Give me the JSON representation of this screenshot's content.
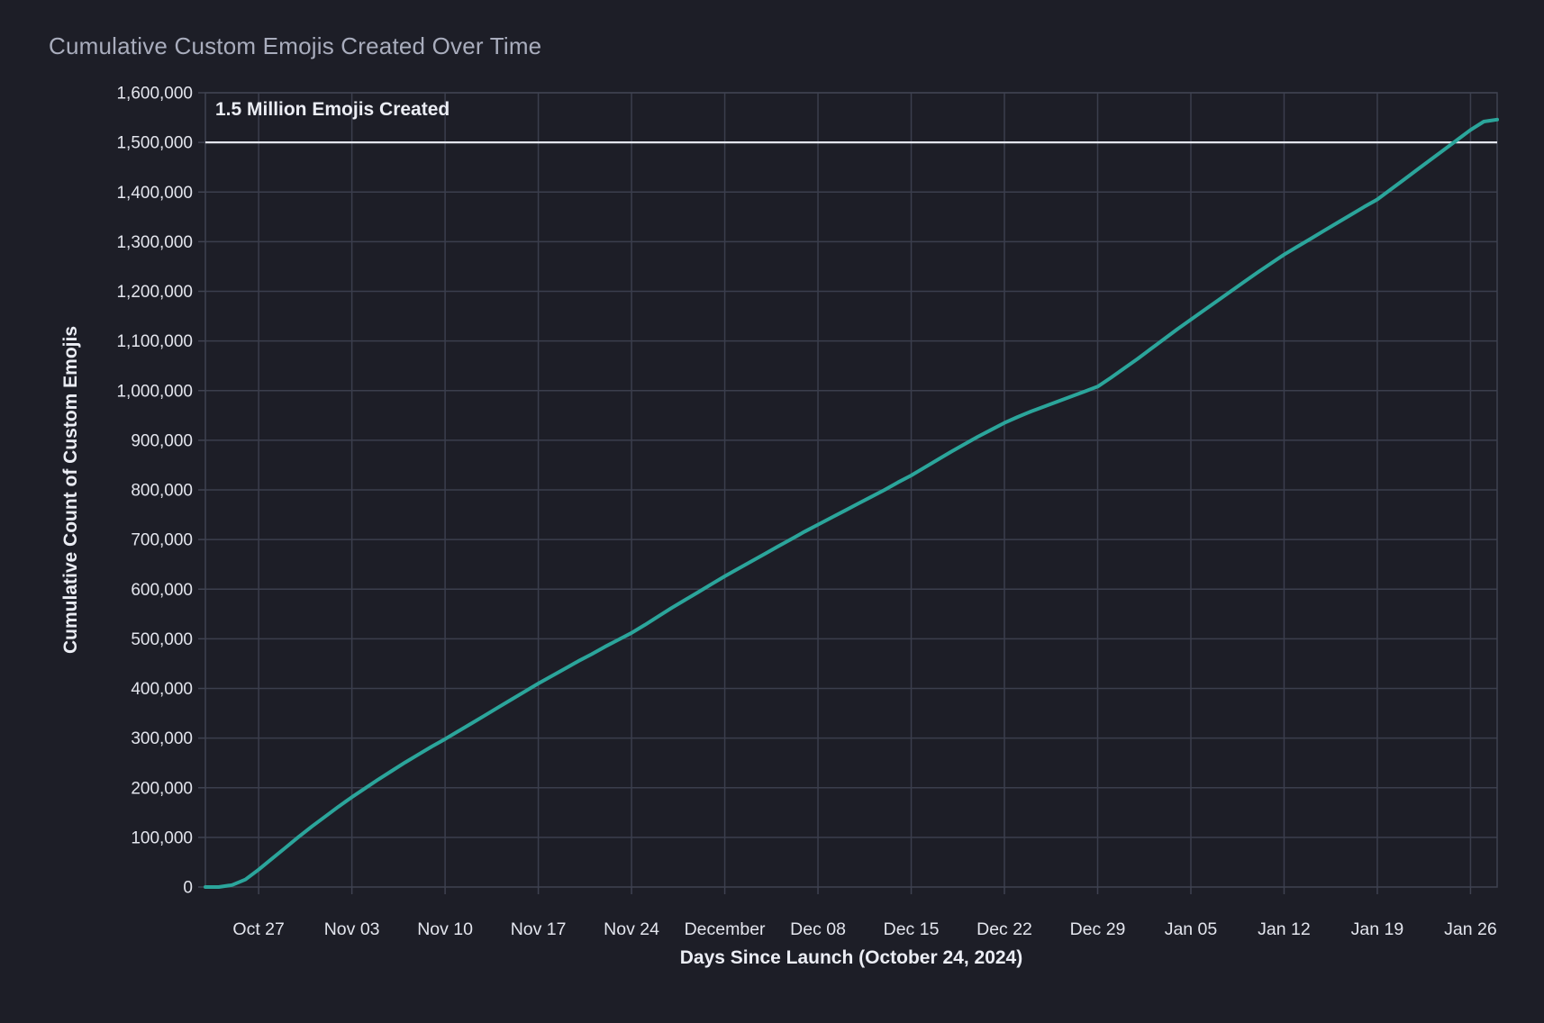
{
  "page": {
    "background": "#1d1e27"
  },
  "chart_data": {
    "type": "line",
    "title": "Cumulative Custom Emojis Created Over Time",
    "xlabel": "Days Since Launch (October 24, 2024)",
    "ylabel": "Cumulative Count of Custom Emojis",
    "legend": "none",
    "grid": true,
    "xlim_days": [
      -1,
      96
    ],
    "ylim": [
      0,
      1600000
    ],
    "y_tick_start": 0,
    "y_tick_step": 100000,
    "y_tick_labels": [
      "0",
      "100,000",
      "200,000",
      "300,000",
      "400,000",
      "500,000",
      "600,000",
      "700,000",
      "800,000",
      "900,000",
      "1,000,000",
      "1,100,000",
      "1,200,000",
      "1,300,000",
      "1,400,000",
      "1,500,000",
      "1,600,000"
    ],
    "x_ticks": [
      {
        "day": 3,
        "label": "Oct 27"
      },
      {
        "day": 10,
        "label": "Nov 03"
      },
      {
        "day": 17,
        "label": "Nov 10"
      },
      {
        "day": 24,
        "label": "Nov 17"
      },
      {
        "day": 31,
        "label": "Nov 24"
      },
      {
        "day": 38,
        "label": "December"
      },
      {
        "day": 45,
        "label": "Dec 08"
      },
      {
        "day": 52,
        "label": "Dec 15"
      },
      {
        "day": 59,
        "label": "Dec 22"
      },
      {
        "day": 66,
        "label": "Dec 29"
      },
      {
        "day": 73,
        "label": "Jan 05"
      },
      {
        "day": 80,
        "label": "Jan 12"
      },
      {
        "day": 87,
        "label": "Jan 19"
      },
      {
        "day": 94,
        "label": "Jan 26"
      }
    ],
    "series_name": "Cumulative Custom Emojis",
    "day_start": -1,
    "values": [
      0,
      0,
      4000,
      15000,
      35000,
      57000,
      79000,
      101000,
      122000,
      142000,
      162000,
      181000,
      199000,
      217000,
      234000,
      251000,
      267000,
      283000,
      298000,
      314000,
      330000,
      346000,
      362000,
      378000,
      394000,
      410000,
      425000,
      440000,
      455000,
      469000,
      484000,
      498000,
      512000,
      528000,
      545000,
      562000,
      578000,
      594000,
      610000,
      626000,
      641000,
      656000,
      671000,
      686000,
      701000,
      716000,
      730000,
      744000,
      758000,
      772000,
      786000,
      800000,
      815000,
      829000,
      845000,
      861000,
      877000,
      892000,
      907000,
      921000,
      935000,
      947000,
      958000,
      968000,
      978000,
      988000,
      998000,
      1008000,
      1026000,
      1045000,
      1064000,
      1084000,
      1104000,
      1124000,
      1143000,
      1162000,
      1181000,
      1200000,
      1219000,
      1238000,
      1256000,
      1274000,
      1290000,
      1306000,
      1322000,
      1338000,
      1354000,
      1370000,
      1385000,
      1405000,
      1425000,
      1445000,
      1465000,
      1485000,
      1505000,
      1525000,
      1542000,
      1546000
    ],
    "reference_line": {
      "y": 1500000,
      "label": "1.5 Million Emojis Created"
    },
    "colors": {
      "background": "#1d1e27",
      "line": "#2ba59b",
      "grid": "#3b3e4d",
      "axis": "#3f4251",
      "reference": "#e4e6ee",
      "tick_text": "#e3e5ed",
      "title_text": "#a9adbd",
      "label_text": "#ebedf4"
    }
  }
}
